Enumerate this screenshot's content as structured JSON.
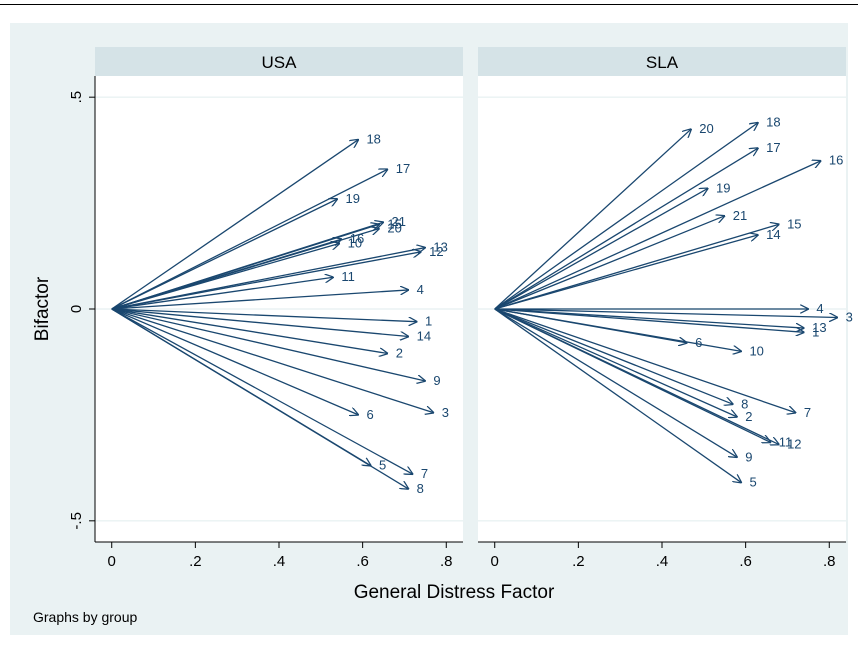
{
  "footnote": "Graphs by group",
  "chart_data": {
    "type": "vector-plot",
    "xlabel": "General Distress Factor",
    "ylabel": "Bifactor",
    "xlim": [
      -0.04,
      0.84
    ],
    "ylim": [
      -0.55,
      0.55
    ],
    "xticks": [
      0,
      0.2,
      0.4,
      0.6,
      0.8
    ],
    "xtick_labels": [
      "0",
      ".2",
      ".4",
      ".6",
      ".8"
    ],
    "yticks": [
      -0.5,
      0,
      0.5
    ],
    "ytick_labels": [
      "-.5",
      "0",
      ".5"
    ],
    "grid": true,
    "colors": {
      "vector": "#1a476f",
      "plot_bg": "#eaf2f3",
      "panel_bg": "#ffffff",
      "header_bg": "#d5e3e7",
      "grid": "#eaf2f3"
    },
    "panels": [
      {
        "title": "USA",
        "vectors": [
          {
            "label": "18",
            "x": 0.59,
            "y": 0.4
          },
          {
            "label": "17",
            "x": 0.66,
            "y": 0.33
          },
          {
            "label": "19",
            "x": 0.54,
            "y": 0.26
          },
          {
            "label": "21",
            "x": 0.65,
            "y": 0.205
          },
          {
            "label": "15",
            "x": 0.64,
            "y": 0.2
          },
          {
            "label": "20",
            "x": 0.64,
            "y": 0.19
          },
          {
            "label": "16",
            "x": 0.55,
            "y": 0.165
          },
          {
            "label": "10",
            "x": 0.545,
            "y": 0.155
          },
          {
            "label": "13",
            "x": 0.75,
            "y": 0.145
          },
          {
            "label": "12",
            "x": 0.74,
            "y": 0.135
          },
          {
            "label": "11",
            "x": 0.53,
            "y": 0.075
          },
          {
            "label": "4",
            "x": 0.71,
            "y": 0.045
          },
          {
            "label": "1",
            "x": 0.73,
            "y": -0.03
          },
          {
            "label": "14",
            "x": 0.71,
            "y": -0.065
          },
          {
            "label": "2",
            "x": 0.66,
            "y": -0.105
          },
          {
            "label": "9",
            "x": 0.75,
            "y": -0.17
          },
          {
            "label": "3",
            "x": 0.77,
            "y": -0.245
          },
          {
            "label": "6",
            "x": 0.59,
            "y": -0.25
          },
          {
            "label": "5",
            "x": 0.62,
            "y": -0.37
          },
          {
            "label": "7",
            "x": 0.72,
            "y": -0.39
          },
          {
            "label": "8",
            "x": 0.71,
            "y": -0.425
          }
        ]
      },
      {
        "title": "SLA",
        "vectors": [
          {
            "label": "20",
            "x": 0.47,
            "y": 0.425
          },
          {
            "label": "18",
            "x": 0.63,
            "y": 0.44
          },
          {
            "label": "17",
            "x": 0.63,
            "y": 0.38
          },
          {
            "label": "16",
            "x": 0.78,
            "y": 0.35
          },
          {
            "label": "19",
            "x": 0.51,
            "y": 0.285
          },
          {
            "label": "21",
            "x": 0.55,
            "y": 0.22
          },
          {
            "label": "15",
            "x": 0.68,
            "y": 0.2
          },
          {
            "label": "14",
            "x": 0.63,
            "y": 0.175
          },
          {
            "label": "4",
            "x": 0.75,
            "y": 0.0
          },
          {
            "label": "3",
            "x": 0.82,
            "y": -0.02
          },
          {
            "label": "13",
            "x": 0.74,
            "y": -0.045
          },
          {
            "label": "1",
            "x": 0.74,
            "y": -0.055
          },
          {
            "label": "6",
            "x": 0.46,
            "y": -0.08
          },
          {
            "label": "10",
            "x": 0.59,
            "y": -0.1
          },
          {
            "label": "8",
            "x": 0.57,
            "y": -0.225
          },
          {
            "label": "2",
            "x": 0.58,
            "y": -0.255
          },
          {
            "label": "7",
            "x": 0.72,
            "y": -0.245
          },
          {
            "label": "11",
            "x": 0.66,
            "y": -0.315
          },
          {
            "label": "12",
            "x": 0.68,
            "y": -0.32
          },
          {
            "label": "9",
            "x": 0.58,
            "y": -0.35
          },
          {
            "label": "5",
            "x": 0.59,
            "y": -0.41
          }
        ]
      }
    ]
  }
}
